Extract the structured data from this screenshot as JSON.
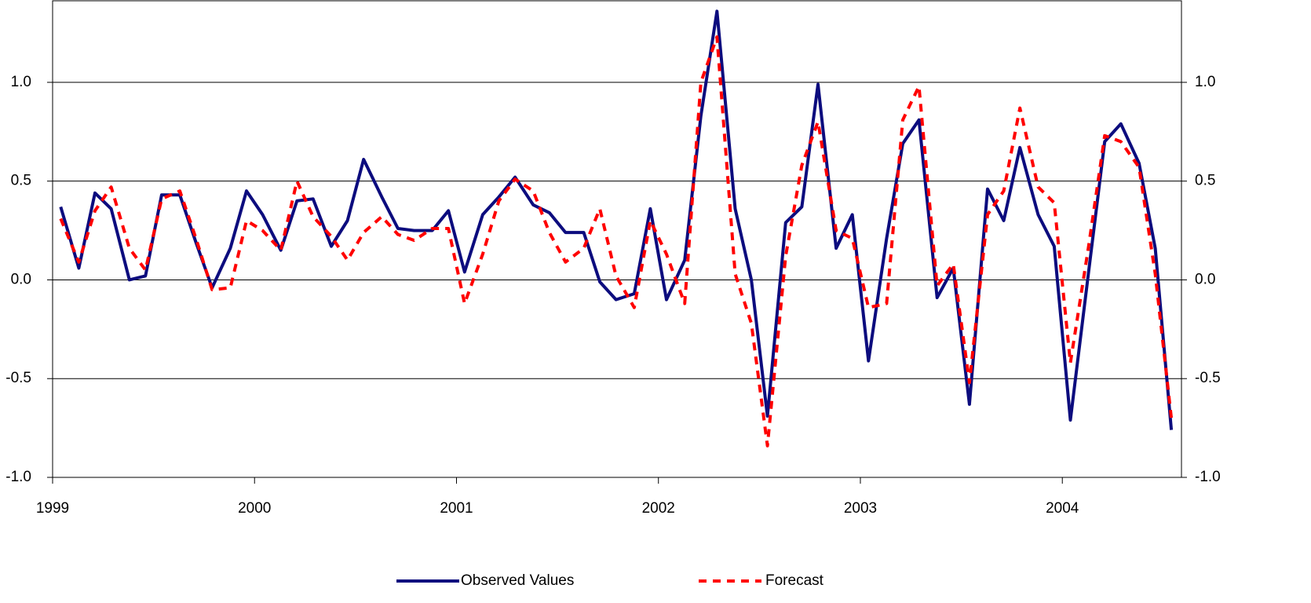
{
  "chart_data": {
    "type": "line",
    "x": [
      1999.04,
      1999.13,
      1999.21,
      1999.29,
      1999.38,
      1999.46,
      1999.54,
      1999.63,
      1999.71,
      1999.79,
      1999.88,
      1999.96,
      2000.04,
      2000.13,
      2000.21,
      2000.29,
      2000.38,
      2000.46,
      2000.54,
      2000.63,
      2000.71,
      2000.79,
      2000.88,
      2000.96,
      2001.04,
      2001.13,
      2001.21,
      2001.29,
      2001.38,
      2001.46,
      2001.54,
      2001.63,
      2001.71,
      2001.79,
      2001.88,
      2001.96,
      2002.04,
      2002.13,
      2002.21,
      2002.29,
      2002.38,
      2002.46,
      2002.54,
      2002.63,
      2002.71,
      2002.79,
      2002.88,
      2002.96,
      2003.04,
      2003.13,
      2003.21,
      2003.29,
      2003.38,
      2003.46,
      2003.54,
      2003.63,
      2003.71,
      2003.79,
      2003.88,
      2003.96,
      2004.04,
      2004.13,
      2004.21,
      2004.29,
      2004.38,
      2004.46,
      2004.54
    ],
    "series": [
      {
        "name": "Observed Values",
        "color": "#0c0c7e",
        "dash": false,
        "values": [
          0.37,
          0.06,
          0.44,
          0.36,
          0.0,
          0.02,
          0.43,
          0.43,
          0.19,
          -0.04,
          0.16,
          0.45,
          0.33,
          0.15,
          0.4,
          0.41,
          0.17,
          0.3,
          0.61,
          0.42,
          0.26,
          0.25,
          0.25,
          0.35,
          0.04,
          0.33,
          0.42,
          0.52,
          0.38,
          0.34,
          0.24,
          0.24,
          -0.01,
          -0.1,
          -0.07,
          0.36,
          -0.1,
          0.1,
          0.83,
          1.36,
          0.36,
          0.0,
          -0.69,
          0.29,
          0.37,
          0.99,
          0.16,
          0.33,
          -0.41,
          0.21,
          0.69,
          0.81,
          -0.09,
          0.06,
          -0.63,
          0.46,
          0.3,
          0.67,
          0.33,
          0.17,
          -0.71,
          0.04,
          0.7,
          0.79,
          0.59,
          0.16,
          -0.76
        ]
      },
      {
        "name": "Forecast",
        "color": "#ff0000",
        "dash": true,
        "values": [
          0.31,
          0.09,
          0.35,
          0.47,
          0.16,
          0.05,
          0.41,
          0.45,
          0.21,
          -0.05,
          -0.04,
          0.3,
          0.25,
          0.15,
          0.5,
          0.32,
          0.22,
          0.1,
          0.24,
          0.32,
          0.23,
          0.2,
          0.26,
          0.26,
          -0.12,
          0.13,
          0.4,
          0.51,
          0.45,
          0.24,
          0.09,
          0.16,
          0.36,
          0.02,
          -0.14,
          0.3,
          0.13,
          -0.12,
          1.0,
          1.23,
          0.03,
          -0.22,
          -0.84,
          0.12,
          0.58,
          0.8,
          0.25,
          0.21,
          -0.14,
          -0.12,
          0.81,
          0.98,
          -0.03,
          0.08,
          -0.52,
          0.33,
          0.45,
          0.87,
          0.47,
          0.39,
          -0.42,
          0.17,
          0.73,
          0.7,
          0.57,
          0.03,
          -0.7
        ]
      }
    ],
    "xlim": [
      1999,
      2004.59
    ],
    "xticks": [
      1999,
      2000,
      2001,
      2002,
      2003,
      2004
    ],
    "ylim": [
      -1,
      1.413
    ],
    "yticks": [
      {
        "value": -1,
        "label": "-1.0"
      },
      {
        "value": -0.5,
        "label": "-0.5"
      },
      {
        "value": 0,
        "label": "0.0"
      },
      {
        "value": 0.5,
        "label": "0.5"
      },
      {
        "value": 1,
        "label": "1.0"
      }
    ],
    "y2lim": [
      -1,
      1.413
    ],
    "y2ticks": [
      {
        "value": -1,
        "label": "-1.0"
      },
      {
        "value": -0.5,
        "label": "-0.5"
      },
      {
        "value": 0,
        "label": "0.0"
      },
      {
        "value": 0.5,
        "label": "0.5"
      },
      {
        "value": 1,
        "label": "1.0"
      }
    ],
    "grid": true,
    "legend": "bottom"
  }
}
